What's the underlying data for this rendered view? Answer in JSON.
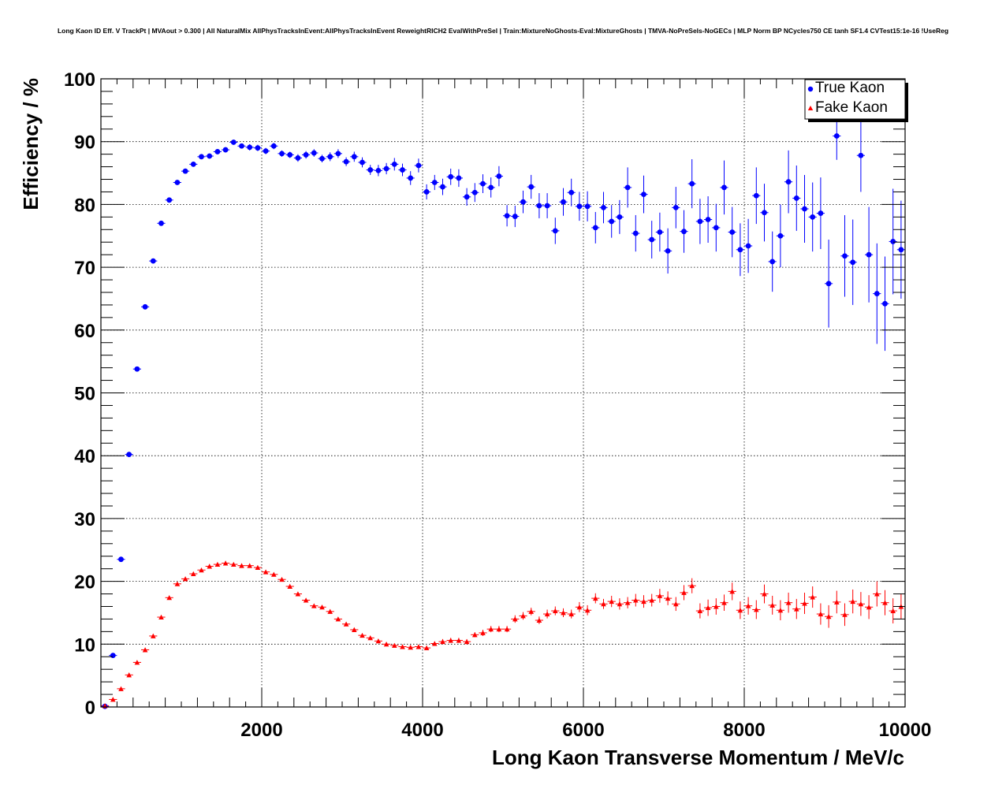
{
  "chart_data": {
    "type": "scatter",
    "title": "Long Kaon ID Eff. V TrackPt | MVAout > 0.300 | All NaturalMix AllPhysTracksInEvent:AllPhysTracksInEvent ReweightRICH2 EvalWithPreSel | Train:MixtureNoGhosts-Eval:MixtureGhosts | TMVA-NoPreSels-NoGECs | MLP Norm BP NCycles750 CE tanh SF1.4 CVTest15:1e-16 !UseReg",
    "xlabel": "Long Kaon Transverse Momentum / MeV/c",
    "ylabel": "Efficiency / %",
    "xlim": [
      0,
      10000
    ],
    "ylim": [
      0,
      100
    ],
    "grid": true,
    "legend_position": "top-right",
    "x_ticks": [
      2000,
      4000,
      6000,
      8000,
      10000
    ],
    "y_ticks": [
      0,
      10,
      20,
      30,
      40,
      50,
      60,
      70,
      80,
      90,
      100
    ],
    "bin_width": 100,
    "series": [
      {
        "name": "True Kaon",
        "color": "#0000ff",
        "marker": "circle",
        "x": [
          50,
          150,
          250,
          350,
          450,
          550,
          650,
          750,
          850,
          950,
          1050,
          1150,
          1250,
          1350,
          1450,
          1550,
          1650,
          1750,
          1850,
          1950,
          2050,
          2150,
          2250,
          2350,
          2450,
          2550,
          2650,
          2750,
          2850,
          2950,
          3050,
          3150,
          3250,
          3350,
          3450,
          3550,
          3650,
          3750,
          3850,
          3950,
          4050,
          4150,
          4250,
          4350,
          4450,
          4550,
          4650,
          4750,
          4850,
          4950,
          5050,
          5150,
          5250,
          5350,
          5450,
          5550,
          5650,
          5750,
          5850,
          5950,
          6050,
          6150,
          6250,
          6350,
          6450,
          6550,
          6650,
          6750,
          6850,
          6950,
          7050,
          7150,
          7250,
          7350,
          7450,
          7550,
          7650,
          7750,
          7850,
          7950,
          8050,
          8150,
          8250,
          8350,
          8450,
          8550,
          8650,
          8750,
          8850,
          8950,
          9050,
          9150,
          9250,
          9350,
          9450,
          9550,
          9650,
          9750,
          9850,
          9950
        ],
        "y": [
          0.1,
          8.2,
          23.5,
          40.2,
          53.8,
          63.7,
          71.0,
          77.0,
          80.7,
          83.5,
          85.3,
          86.4,
          87.6,
          87.7,
          88.4,
          88.7,
          89.9,
          89.3,
          89.1,
          89.0,
          88.5,
          89.3,
          88.1,
          87.9,
          87.4,
          87.9,
          88.2,
          87.3,
          87.6,
          88.1,
          86.8,
          87.6,
          86.7,
          85.5,
          85.4,
          85.7,
          86.4,
          85.5,
          84.2,
          86.2,
          82.0,
          83.5,
          82.8,
          84.4,
          84.2,
          81.2,
          81.9,
          83.3,
          82.7,
          84.5,
          78.2,
          78.1,
          80.4,
          82.8,
          79.8,
          79.8,
          75.8,
          80.4,
          81.9,
          79.7,
          79.7,
          76.3,
          79.5,
          77.3,
          78.0,
          82.7,
          75.4,
          81.6,
          74.4,
          75.6,
          72.6,
          79.5,
          75.7,
          83.3,
          77.3,
          77.6,
          76.3,
          82.7,
          75.6,
          72.8,
          73.4,
          81.4,
          78.7,
          70.9,
          75.0,
          83.6,
          81.0,
          79.3,
          78.0,
          78.6,
          67.4,
          90.9,
          71.8,
          70.8,
          87.8,
          72.0,
          65.8,
          64.2,
          74.1,
          72.8
        ],
        "yerr": [
          0.1,
          0.3,
          0.4,
          0.4,
          0.4,
          0.4,
          0.4,
          0.4,
          0.4,
          0.4,
          0.4,
          0.4,
          0.4,
          0.4,
          0.4,
          0.4,
          0.4,
          0.4,
          0.5,
          0.5,
          0.5,
          0.5,
          0.5,
          0.5,
          0.6,
          0.6,
          0.6,
          0.6,
          0.7,
          0.7,
          0.7,
          0.8,
          0.8,
          0.8,
          0.9,
          0.9,
          1.0,
          1.0,
          1.1,
          1.1,
          1.2,
          1.2,
          1.3,
          1.3,
          1.4,
          1.4,
          1.5,
          1.5,
          1.6,
          1.6,
          1.7,
          1.7,
          1.8,
          1.9,
          2.0,
          2.0,
          2.1,
          2.2,
          2.2,
          2.3,
          2.4,
          2.5,
          2.5,
          2.6,
          2.7,
          3.2,
          2.9,
          3.0,
          3.0,
          3.1,
          3.6,
          3.3,
          3.4,
          3.9,
          3.6,
          3.7,
          3.8,
          4.3,
          4.0,
          4.2,
          4.3,
          4.5,
          4.6,
          4.8,
          5.0,
          5.0,
          5.2,
          5.4,
          5.5,
          5.7,
          7.0,
          3.8,
          6.5,
          6.8,
          5.8,
          7.6,
          8.0,
          7.5,
          8.4,
          7.8
        ]
      },
      {
        "name": "Fake Kaon",
        "color": "#ff0000",
        "marker": "triangle",
        "x": [
          50,
          150,
          250,
          350,
          450,
          550,
          650,
          750,
          850,
          950,
          1050,
          1150,
          1250,
          1350,
          1450,
          1550,
          1650,
          1750,
          1850,
          1950,
          2050,
          2150,
          2250,
          2350,
          2450,
          2550,
          2650,
          2750,
          2850,
          2950,
          3050,
          3150,
          3250,
          3350,
          3450,
          3550,
          3650,
          3750,
          3850,
          3950,
          4050,
          4150,
          4250,
          4350,
          4450,
          4550,
          4650,
          4750,
          4850,
          4950,
          5050,
          5150,
          5250,
          5350,
          5450,
          5550,
          5650,
          5750,
          5850,
          5950,
          6050,
          6150,
          6250,
          6350,
          6450,
          6550,
          6650,
          6750,
          6850,
          6950,
          7050,
          7150,
          7250,
          7350,
          7450,
          7550,
          7650,
          7750,
          7850,
          7950,
          8050,
          8150,
          8250,
          8350,
          8450,
          8550,
          8650,
          8750,
          8850,
          8950,
          9050,
          9150,
          9250,
          9350,
          9450,
          9550,
          9650,
          9750,
          9850,
          9950
        ],
        "y": [
          0.2,
          1.2,
          2.9,
          5.1,
          7.1,
          9.1,
          11.3,
          14.3,
          17.4,
          19.6,
          20.4,
          21.2,
          21.8,
          22.4,
          22.7,
          22.9,
          22.7,
          22.5,
          22.5,
          22.2,
          21.5,
          21.1,
          20.3,
          19.2,
          18.0,
          17.0,
          16.1,
          15.9,
          15.2,
          14.0,
          13.2,
          12.3,
          11.4,
          11.0,
          10.5,
          10.0,
          9.8,
          9.6,
          9.5,
          9.6,
          9.4,
          10.1,
          10.4,
          10.6,
          10.6,
          10.4,
          11.5,
          11.8,
          12.4,
          12.4,
          12.4,
          14.0,
          14.5,
          15.2,
          13.8,
          14.8,
          15.3,
          15.0,
          14.8,
          15.9,
          15.4,
          17.3,
          16.4,
          16.8,
          16.4,
          16.6,
          17.0,
          16.8,
          17.0,
          17.7,
          17.3,
          16.4,
          18.2,
          19.3,
          15.3,
          15.8,
          16.0,
          16.6,
          18.4,
          15.4,
          16.1,
          15.5,
          18.0,
          16.2,
          15.4,
          16.6,
          15.6,
          16.5,
          17.5,
          14.8,
          14.4,
          16.7,
          14.7,
          16.8,
          16.4,
          15.9,
          18.0,
          16.6,
          15.3,
          16.0
        ],
        "yerr": [
          0.1,
          0.1,
          0.2,
          0.2,
          0.2,
          0.2,
          0.2,
          0.2,
          0.2,
          0.2,
          0.2,
          0.2,
          0.2,
          0.2,
          0.2,
          0.2,
          0.2,
          0.2,
          0.2,
          0.2,
          0.2,
          0.2,
          0.2,
          0.2,
          0.2,
          0.2,
          0.2,
          0.2,
          0.2,
          0.2,
          0.2,
          0.2,
          0.2,
          0.2,
          0.2,
          0.2,
          0.3,
          0.3,
          0.3,
          0.3,
          0.3,
          0.3,
          0.4,
          0.4,
          0.4,
          0.4,
          0.4,
          0.5,
          0.5,
          0.5,
          0.5,
          0.6,
          0.6,
          0.6,
          0.6,
          0.7,
          0.7,
          0.7,
          0.7,
          0.8,
          0.8,
          0.8,
          0.8,
          0.9,
          0.9,
          0.9,
          1.0,
          1.0,
          1.0,
          1.1,
          1.1,
          1.1,
          1.2,
          1.2,
          1.2,
          1.3,
          1.3,
          1.3,
          1.4,
          1.4,
          1.4,
          1.5,
          1.5,
          1.5,
          1.6,
          1.6,
          1.6,
          1.7,
          1.7,
          1.7,
          1.8,
          1.8,
          1.8,
          1.9,
          1.9,
          1.9,
          2.0,
          2.0,
          2.0,
          2.0
        ]
      }
    ]
  }
}
